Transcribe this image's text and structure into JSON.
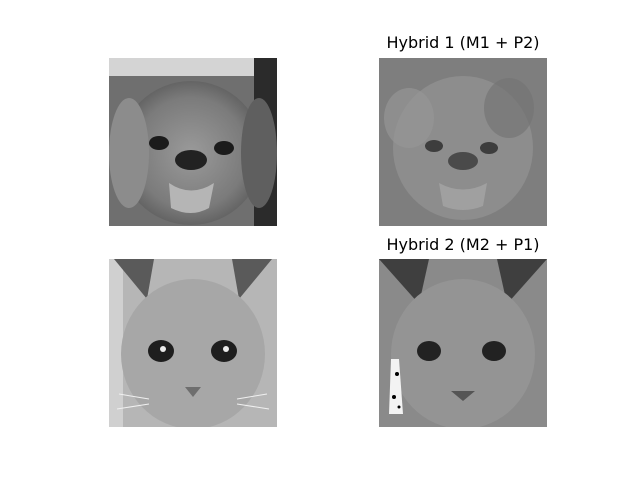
{
  "figure": {
    "panels": [
      {
        "id": "dog",
        "title": ""
      },
      {
        "id": "hybrid1",
        "title": "Hybrid 1 (M1 + P2)"
      },
      {
        "id": "cat",
        "title": ""
      },
      {
        "id": "hybrid2",
        "title": "Hybrid 2 (M2 + P1)"
      }
    ]
  },
  "colors": {
    "background": "#ffffff",
    "text": "#000000"
  }
}
